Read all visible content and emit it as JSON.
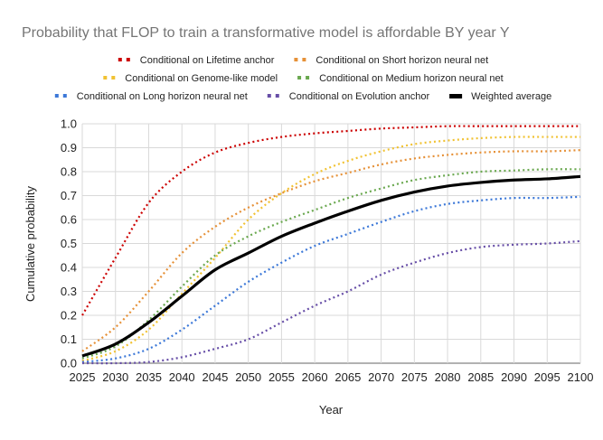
{
  "chart_data": {
    "type": "line",
    "title": "Probability that FLOP to train a transformative model is affordable BY year Y",
    "xlabel": "Year",
    "ylabel": "Cumulative probability",
    "xlim": [
      2025,
      2100
    ],
    "ylim": [
      0,
      1
    ],
    "grid": true,
    "legend_position": "top",
    "x": [
      2025,
      2030,
      2035,
      2040,
      2045,
      2050,
      2055,
      2060,
      2065,
      2070,
      2075,
      2080,
      2085,
      2090,
      2095,
      2100
    ],
    "x_ticks": [
      "2025",
      "2030",
      "2035",
      "2040",
      "2045",
      "2050",
      "2055",
      "2060",
      "2065",
      "2070",
      "2075",
      "2080",
      "2085",
      "2090",
      "2095",
      "2100"
    ],
    "y_ticks": [
      "0.0",
      "0.1",
      "0.2",
      "0.3",
      "0.4",
      "0.5",
      "0.6",
      "0.7",
      "0.8",
      "0.9",
      "1.0"
    ],
    "series": [
      {
        "name": "Conditional on Lifetime anchor",
        "color": "#cc0000",
        "style": "dotted",
        "values": [
          0.2,
          0.44,
          0.67,
          0.8,
          0.88,
          0.92,
          0.945,
          0.96,
          0.97,
          0.98,
          0.985,
          0.99,
          0.99,
          0.99,
          0.99,
          0.99
        ]
      },
      {
        "name": "Conditional on Short horizon neural net",
        "color": "#e69138",
        "style": "dotted",
        "values": [
          0.05,
          0.15,
          0.3,
          0.46,
          0.57,
          0.65,
          0.71,
          0.76,
          0.795,
          0.83,
          0.855,
          0.87,
          0.88,
          0.885,
          0.885,
          0.89
        ]
      },
      {
        "name": "Conditional on Genome-like model",
        "color": "#f1c232",
        "style": "dotted",
        "values": [
          0.01,
          0.05,
          0.14,
          0.29,
          0.44,
          0.6,
          0.71,
          0.79,
          0.845,
          0.885,
          0.915,
          0.93,
          0.94,
          0.945,
          0.945,
          0.945
        ]
      },
      {
        "name": "Conditional on Medium horizon neural net",
        "color": "#6aa84f",
        "style": "dotted",
        "values": [
          0.02,
          0.07,
          0.18,
          0.32,
          0.45,
          0.53,
          0.59,
          0.64,
          0.69,
          0.73,
          0.765,
          0.785,
          0.8,
          0.805,
          0.81,
          0.81
        ]
      },
      {
        "name": "Conditional on Long horizon neural net",
        "color": "#3c78d8",
        "style": "dotted",
        "values": [
          0.005,
          0.02,
          0.06,
          0.14,
          0.24,
          0.34,
          0.42,
          0.49,
          0.54,
          0.59,
          0.635,
          0.665,
          0.68,
          0.69,
          0.69,
          0.695
        ]
      },
      {
        "name": "Conditional on Evolution anchor",
        "color": "#674ea7",
        "style": "dotted",
        "values": [
          0.0,
          0.0,
          0.005,
          0.025,
          0.06,
          0.1,
          0.17,
          0.24,
          0.3,
          0.37,
          0.42,
          0.46,
          0.485,
          0.495,
          0.5,
          0.51
        ]
      },
      {
        "name": "Weighted average",
        "color": "#000000",
        "style": "solid",
        "values": [
          0.03,
          0.08,
          0.17,
          0.28,
          0.39,
          0.46,
          0.53,
          0.585,
          0.635,
          0.68,
          0.715,
          0.74,
          0.755,
          0.765,
          0.77,
          0.78
        ]
      }
    ]
  }
}
